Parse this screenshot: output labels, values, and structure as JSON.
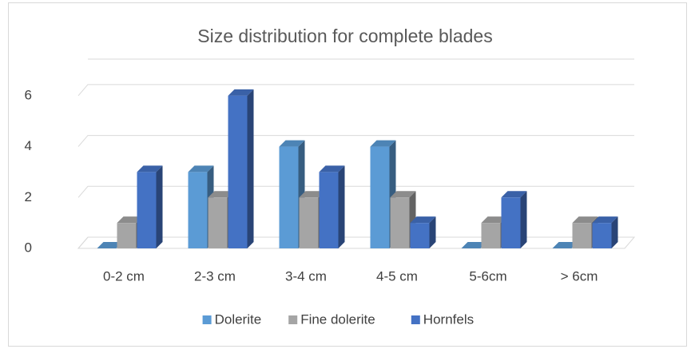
{
  "chart_data": {
    "type": "bar3d",
    "title": "Size distribution for complete blades",
    "categories": [
      "0-2 cm",
      "2-3 cm",
      "3-4  cm",
      "4-5 cm",
      "5-6cm",
      "> 6cm"
    ],
    "series": [
      {
        "name": "Dolerite",
        "color": "#5b9bd5",
        "values": [
          0,
          3,
          4,
          4,
          0,
          0
        ]
      },
      {
        "name": "Fine dolerite",
        "color": "#a5a5a5",
        "values": [
          1,
          2,
          2,
          2,
          1,
          1
        ]
      },
      {
        "name": "Hornfels",
        "color": "#4472c4",
        "values": [
          3,
          6,
          3,
          1,
          2,
          1
        ]
      }
    ],
    "ylim": [
      0,
      7
    ],
    "yticks": [
      0,
      2,
      4,
      6
    ],
    "grid": true,
    "legend": "bottom"
  }
}
